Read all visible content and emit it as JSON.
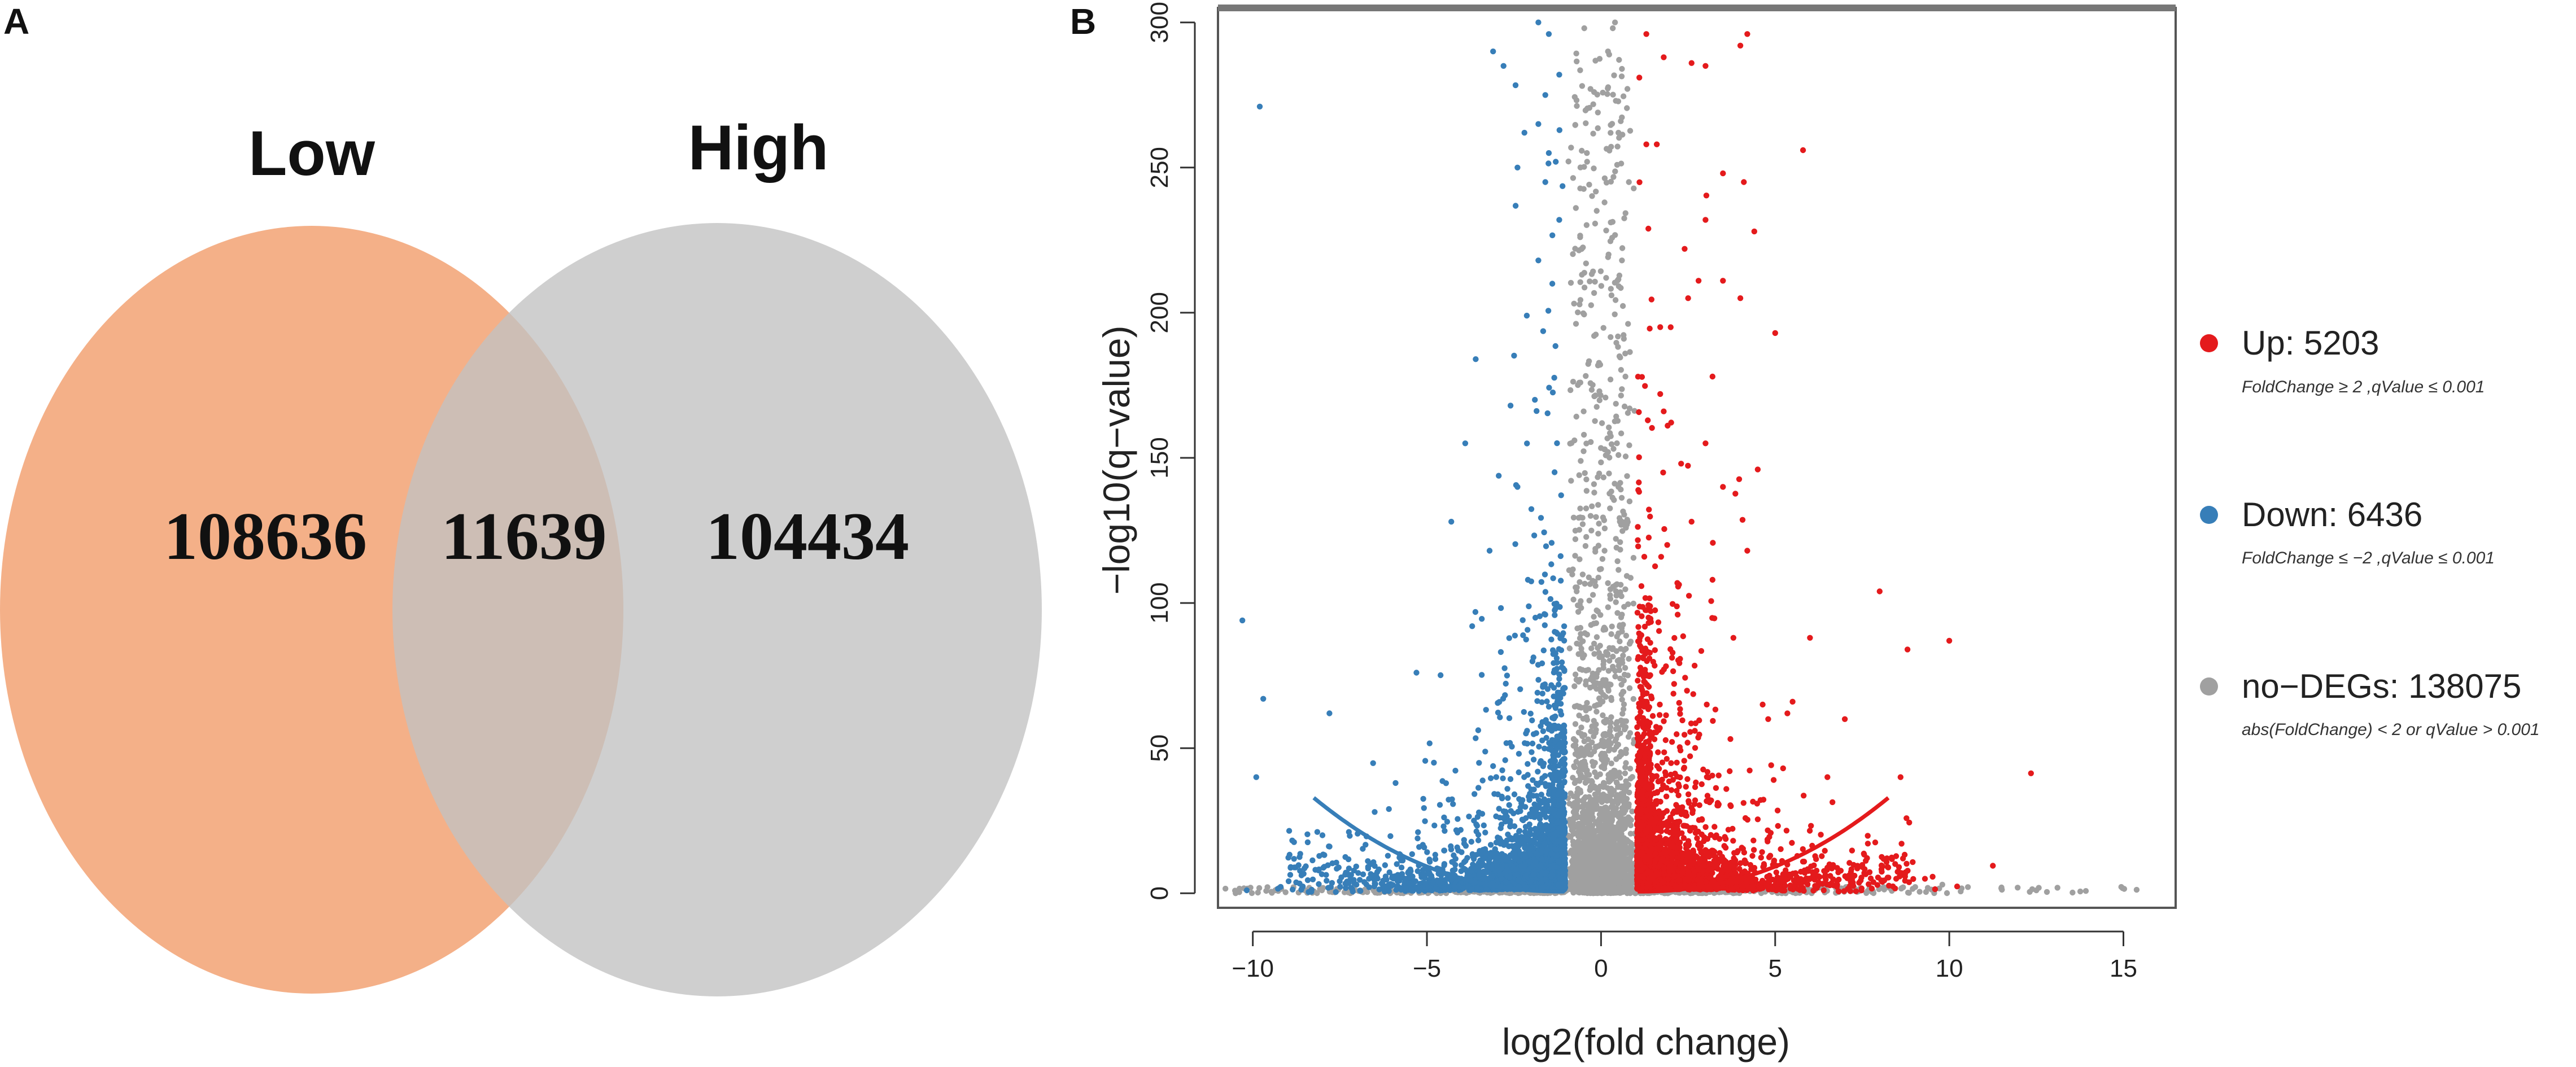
{
  "panel_a_label": "A",
  "panel_b_label": "B",
  "chart_data": [
    {
      "type": "venn",
      "sets": [
        {
          "name": "Low",
          "unique_count": "108636",
          "color": "#f4b088"
        },
        {
          "name": "High",
          "unique_count": "104434",
          "color": "#d2d2d2"
        }
      ],
      "intersection_count": "11639",
      "overlap_color": "#c9a48f"
    },
    {
      "type": "scatter",
      "title": "",
      "xlabel": "log2(fold change)",
      "ylabel": "−log10(q−value)",
      "xlim": [
        -11,
        16.5
      ],
      "ylim": [
        -5,
        305
      ],
      "x_ticks": [
        -10,
        -5,
        0,
        5,
        10,
        15
      ],
      "x_tick_labels": [
        "−10",
        "−5",
        "0",
        "5",
        "10",
        "15"
      ],
      "y_ticks": [
        0,
        50,
        100,
        150,
        200,
        250,
        300
      ],
      "y_tick_labels": [
        "0",
        "50",
        "100",
        "150",
        "200",
        "250",
        "300"
      ],
      "thresholds": {
        "fold_change": 2,
        "q_value": 0.001
      },
      "series": [
        {
          "name": "Up",
          "label": "Up: 5203",
          "count": 5203,
          "color": "#e41a1c",
          "note": "FoldChange ≥ 2 ,qValue ≤ 0.001"
        },
        {
          "name": "Down",
          "label": "Down: 6436",
          "count": 6436,
          "color": "#377eb8",
          "note": "FoldChange ≤ −2 ,qValue ≤ 0.001"
        },
        {
          "name": "no-DEGs",
          "label": "no−DEGs: 138075",
          "count": 138075,
          "color": "#a0a0a0",
          "note": "abs(FoldChange) < 2  or qValue > 0.001"
        }
      ],
      "highlight_points": {
        "Up": [
          [
            1.3,
            296
          ],
          [
            1.8,
            288
          ],
          [
            1.1,
            281
          ],
          [
            3.0,
            285
          ],
          [
            4.0,
            292
          ],
          [
            4.2,
            296
          ],
          [
            2.6,
            286
          ],
          [
            1.6,
            258
          ],
          [
            1.3,
            258
          ],
          [
            5.8,
            256
          ],
          [
            3.5,
            248
          ],
          [
            4.1,
            245
          ],
          [
            4.4,
            228
          ],
          [
            2.4,
            222
          ],
          [
            3.0,
            232
          ],
          [
            2.8,
            211
          ],
          [
            3.5,
            211
          ],
          [
            2.5,
            205
          ],
          [
            4.0,
            205
          ],
          [
            5.0,
            193
          ],
          [
            3.2,
            178
          ],
          [
            2.0,
            195
          ],
          [
            1.7,
            172
          ],
          [
            3.0,
            155
          ],
          [
            4.5,
            146
          ],
          [
            2.3,
            148
          ],
          [
            3.5,
            140
          ],
          [
            1.8,
            166
          ],
          [
            4.2,
            118
          ],
          [
            2.6,
            128
          ],
          [
            1.9,
            120
          ],
          [
            3.2,
            108
          ],
          [
            8.0,
            104
          ],
          [
            10.0,
            87
          ],
          [
            8.8,
            84
          ],
          [
            6.0,
            88
          ],
          [
            7.0,
            60
          ],
          [
            8.6,
            40
          ],
          [
            9.3,
            5
          ],
          [
            5.5,
            66
          ],
          [
            4.8,
            60
          ],
          [
            6.5,
            40
          ],
          [
            2.2,
            96
          ],
          [
            3.8,
            88
          ]
        ],
        "Down": [
          [
            -1.8,
            300
          ],
          [
            -1.5,
            296
          ],
          [
            -3.1,
            290
          ],
          [
            -2.8,
            285
          ],
          [
            -1.2,
            282
          ],
          [
            -1.6,
            275
          ],
          [
            -9.8,
            271
          ],
          [
            -1.8,
            265
          ],
          [
            -2.2,
            262
          ],
          [
            -1.5,
            255
          ],
          [
            -1.3,
            252
          ],
          [
            -2.4,
            250
          ],
          [
            -1.6,
            245
          ],
          [
            -1.2,
            232
          ],
          [
            -3.6,
            184
          ],
          [
            -1.8,
            218
          ],
          [
            -1.4,
            210
          ],
          [
            -2.6,
            168
          ],
          [
            -3.9,
            155
          ],
          [
            -2.4,
            140
          ],
          [
            -1.9,
            170
          ],
          [
            -4.3,
            128
          ],
          [
            -10.3,
            94
          ],
          [
            -9.7,
            67
          ],
          [
            -7.8,
            62
          ],
          [
            -5.3,
            76
          ],
          [
            -3.2,
            118
          ],
          [
            -2.1,
            108
          ],
          [
            -1.6,
            96
          ],
          [
            -9.9,
            40
          ],
          [
            -8.0,
            20
          ],
          [
            -6.5,
            28
          ],
          [
            -4.8,
            45
          ],
          [
            -2.7,
            75
          ],
          [
            -3.7,
            92
          ],
          [
            -5.9,
            38
          ]
        ],
        "Grey": [
          [
            0.4,
            300
          ],
          [
            0.2,
            290
          ],
          [
            0.6,
            284
          ],
          [
            -0.2,
            276
          ],
          [
            0.5,
            262
          ],
          [
            -0.4,
            252
          ],
          [
            0.8,
            245
          ],
          [
            0.1,
            238
          ],
          [
            -0.6,
            226
          ],
          [
            0.6,
            218
          ],
          [
            0.3,
            206
          ],
          [
            -0.2,
            192
          ],
          [
            0.7,
            178
          ],
          [
            -0.5,
            166
          ],
          [
            0.2,
            152
          ],
          [
            0.5,
            140
          ],
          [
            -0.3,
            130
          ],
          [
            0.1,
            118
          ],
          [
            -0.7,
            104
          ],
          [
            0.6,
            96
          ],
          [
            -0.2,
            86
          ],
          [
            11.5,
            2
          ],
          [
            12.5,
            1
          ],
          [
            9.8,
            3
          ],
          [
            -7.5,
            2
          ],
          [
            -8.5,
            1
          ]
        ]
      },
      "v_curve": {
        "fold_change_threshold": 1,
        "q_value_cutoff": 0.001
      }
    }
  ]
}
